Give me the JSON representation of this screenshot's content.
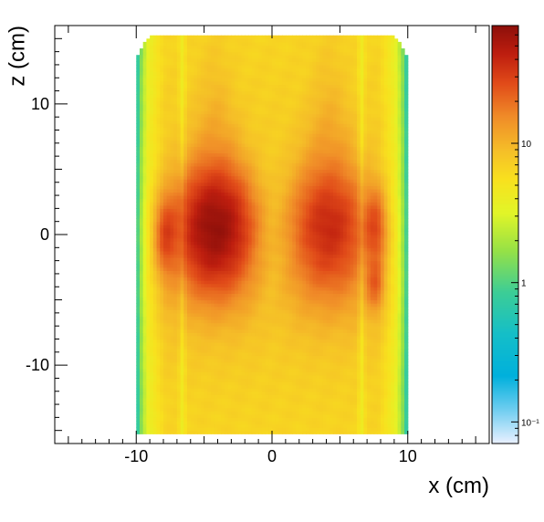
{
  "chart_data": {
    "type": "heatmap",
    "title": "",
    "xlabel": "x (cm)",
    "ylabel": "z (cm)",
    "xlim": [
      -16,
      16
    ],
    "ylim": [
      -16,
      16
    ],
    "x_ticks": [
      -10,
      0,
      10
    ],
    "y_ticks": [
      -10,
      0,
      10
    ],
    "x_tick_labels": [
      "-10",
      "0",
      "10"
    ],
    "y_tick_labels": [
      "-10",
      "0",
      "10"
    ],
    "colorbar": {
      "scale": "log",
      "range": [
        0.07,
        70
      ],
      "tick_values": [
        0.1,
        1,
        10
      ],
      "tick_labels": [
        "10⁻¹",
        "1",
        "10"
      ]
    },
    "phantom_extent": {
      "x_half_width": 10,
      "z_min": -15.3,
      "z_max": 15.3
    },
    "hotspots": [
      {
        "x": -4.2,
        "z": 0.5,
        "sx": 1.6,
        "sz": 2.6,
        "peak": 50
      },
      {
        "x": 4.2,
        "z": 0.5,
        "sx": 1.6,
        "sz": 2.6,
        "peak": 24
      },
      {
        "x": -7.8,
        "z": 0,
        "sx": 0.5,
        "sz": 1.8,
        "peak": 18
      },
      {
        "x": 7.6,
        "z": -3.8,
        "sx": 0.4,
        "sz": 1.2,
        "peak": 12
      }
    ],
    "grid": false,
    "legend": "colorbar-right"
  }
}
